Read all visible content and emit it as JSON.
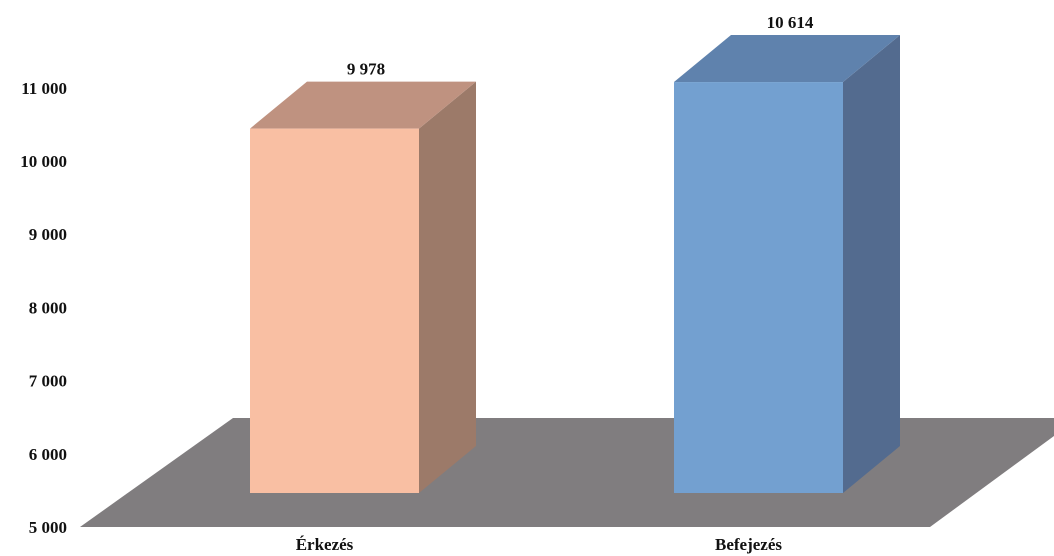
{
  "chart_data": {
    "type": "bar",
    "style": "3d-column",
    "categories": [
      "Érkezés",
      "Befejezés"
    ],
    "values": [
      9978,
      10614
    ],
    "data_labels": [
      "9 978",
      "10 614"
    ],
    "ylim": [
      5000,
      11000
    ],
    "yticks": [
      5000,
      6000,
      7000,
      8000,
      9000,
      10000,
      11000
    ],
    "ytick_labels": [
      "5 000",
      "6 000",
      "7 000",
      "8 000",
      "9 000",
      "10 000",
      "11 000"
    ],
    "grid": false,
    "legend": "none",
    "colors": {
      "bars": [
        {
          "front": "#F9BFA3",
          "side": "#9C7A69",
          "top": "#BF9280"
        },
        {
          "front": "#73A0D0",
          "side": "#536B8F",
          "top": "#5F82AD"
        }
      ],
      "floor": "#807D7F"
    }
  }
}
